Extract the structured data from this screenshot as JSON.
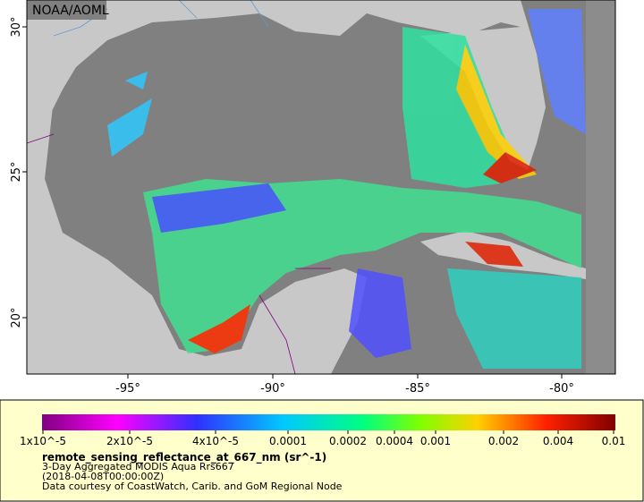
{
  "map": {
    "credit": "NOAA/AOML",
    "lat_ticks": [
      "30°",
      "25°",
      "20°"
    ],
    "lon_ticks": [
      "-95°",
      "-90°",
      "-85°",
      "-80°"
    ],
    "colorbar": {
      "labels": [
        "1x10^-5",
        "2x10^-5",
        "4x10^-5",
        "0.0001",
        "0.0002",
        "0.0004",
        "0.001",
        "0.002",
        "0.004",
        "0.01"
      ],
      "variable": "remote_sensing_reflectance_at_667_nm (sr^-1)",
      "lines": [
        "3-Day Aggregated MODIS Aqua Rrs667",
        "(2018-04-08T00:00:00Z)",
        "Data courtesy of CoastWatch, Carib. and GoM Regional Node"
      ]
    }
  }
}
